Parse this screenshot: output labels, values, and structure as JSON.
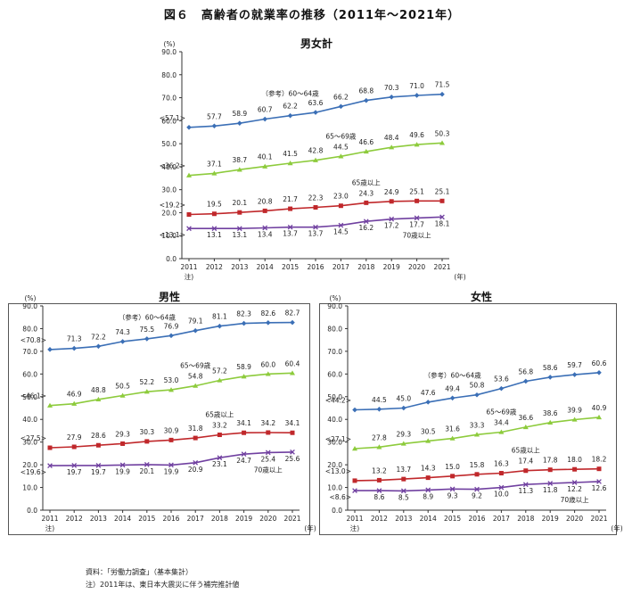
{
  "figure_title": "図６　高齢者の就業率の推移（2011年～2021年）",
  "footer": {
    "source": "資料：「労働力調査」（基本集計）",
    "note": "注）2011年は、東日本大震災に伴う補完推計値"
  },
  "chart_data": [
    {
      "type": "line",
      "title": "男女計",
      "ylabel": "(%)",
      "xunit": "(年)",
      "x_note": "注)",
      "ylim": [
        0,
        90
      ],
      "grid": false,
      "categories": [
        "2011",
        "2012",
        "2013",
        "2014",
        "2015",
        "2016",
        "2017",
        "2018",
        "2019",
        "2020",
        "2021"
      ],
      "y_ticks": [
        "0.0",
        "10.0",
        "20.0",
        "30.0",
        "40.0",
        "50.0",
        "60.0",
        "70.0",
        "80.0",
        "90.0"
      ],
      "y_tick_values": [
        0,
        10,
        20,
        30,
        40,
        50,
        60,
        70,
        80,
        90
      ],
      "series": [
        {
          "name": "（参考）60～64歳",
          "color": "#3b6fb6",
          "marker": "diamond",
          "values": [
            57.1,
            57.7,
            58.9,
            60.7,
            62.2,
            63.6,
            66.2,
            68.8,
            70.3,
            71.0,
            71.5
          ],
          "labels": [
            "<57.1>",
            "57.7",
            "58.9",
            "60.7",
            "62.2",
            "63.6",
            "66.2",
            "68.8",
            "70.3",
            "71.0",
            "71.5"
          ]
        },
        {
          "name": "65～69歳",
          "color": "#8dcb3c",
          "marker": "triangle",
          "values": [
            36.2,
            37.1,
            38.7,
            40.1,
            41.5,
            42.8,
            44.5,
            46.6,
            48.4,
            49.6,
            50.3
          ],
          "labels": [
            "<36.2>",
            "37.1",
            "38.7",
            "40.1",
            "41.5",
            "42.8",
            "44.5",
            "46.6",
            "48.4",
            "49.6",
            "50.3"
          ]
        },
        {
          "name": "65歳以上",
          "color": "#c0282b",
          "marker": "square",
          "values": [
            19.2,
            19.5,
            20.1,
            20.8,
            21.7,
            22.3,
            23.0,
            24.3,
            24.9,
            25.1,
            25.1
          ],
          "labels": [
            "<19.2>",
            "19.5",
            "20.1",
            "20.8",
            "21.7",
            "22.3",
            "23.0",
            "24.3",
            "24.9",
            "25.1",
            "25.1"
          ]
        },
        {
          "name": "70歳以上",
          "color": "#7040a0",
          "marker": "x",
          "values": [
            13.1,
            13.1,
            13.1,
            13.4,
            13.7,
            13.7,
            14.5,
            16.2,
            17.2,
            17.7,
            18.1
          ],
          "labels": [
            "<13.1>",
            "13.1",
            "13.1",
            "13.4",
            "13.7",
            "13.7",
            "14.5",
            "16.2",
            "17.2",
            "17.7",
            "18.1"
          ]
        }
      ]
    },
    {
      "type": "line",
      "title": "男性",
      "ylabel": "(%)",
      "xunit": "(年)",
      "x_note": "注)",
      "ylim": [
        0,
        90
      ],
      "grid": false,
      "categories": [
        "2011",
        "2012",
        "2013",
        "2014",
        "2015",
        "2016",
        "2017",
        "2018",
        "2019",
        "2020",
        "2021"
      ],
      "y_ticks": [
        "0.0",
        "10.0",
        "20.0",
        "30.0",
        "40.0",
        "50.0",
        "60.0",
        "70.0",
        "80.0",
        "90.0"
      ],
      "y_tick_values": [
        0,
        10,
        20,
        30,
        40,
        50,
        60,
        70,
        80,
        90
      ],
      "series": [
        {
          "name": "（参考）60～64歳",
          "color": "#3b6fb6",
          "marker": "diamond",
          "values": [
            70.8,
            71.3,
            72.2,
            74.3,
            75.5,
            76.9,
            79.1,
            81.1,
            82.3,
            82.6,
            82.7
          ],
          "labels": [
            "<70.8>",
            "71.3",
            "72.2",
            "74.3",
            "75.5",
            "76.9",
            "79.1",
            "81.1",
            "82.3",
            "82.6",
            "82.7"
          ]
        },
        {
          "name": "65～69歳",
          "color": "#8dcb3c",
          "marker": "triangle",
          "values": [
            46.1,
            46.9,
            48.8,
            50.5,
            52.2,
            53.0,
            54.8,
            57.2,
            58.9,
            60.0,
            60.4
          ],
          "labels": [
            "<46.1>",
            "46.9",
            "48.8",
            "50.5",
            "52.2",
            "53.0",
            "54.8",
            "57.2",
            "58.9",
            "60.0",
            "60.4"
          ]
        },
        {
          "name": "65歳以上",
          "color": "#c0282b",
          "marker": "square",
          "values": [
            27.5,
            27.9,
            28.6,
            29.3,
            30.3,
            30.9,
            31.8,
            33.2,
            34.1,
            34.2,
            34.1
          ],
          "labels": [
            "<27.5>",
            "27.9",
            "28.6",
            "29.3",
            "30.3",
            "30.9",
            "31.8",
            "33.2",
            "34.1",
            "34.2",
            "34.1"
          ]
        },
        {
          "name": "70歳以上",
          "color": "#7040a0",
          "marker": "x",
          "values": [
            19.6,
            19.7,
            19.7,
            19.9,
            20.1,
            19.9,
            20.9,
            23.1,
            24.7,
            25.4,
            25.6
          ],
          "labels": [
            "<19.6>",
            "19.7",
            "19.7",
            "19.9",
            "20.1",
            "19.9",
            "20.9",
            "23.1",
            "24.7",
            "25.4",
            "25.6"
          ]
        }
      ]
    },
    {
      "type": "line",
      "title": "女性",
      "ylabel": "(%)",
      "xunit": "(年)",
      "x_note": "注)",
      "ylim": [
        0,
        90
      ],
      "grid": false,
      "categories": [
        "2011",
        "2012",
        "2013",
        "2014",
        "2015",
        "2016",
        "2017",
        "2018",
        "2019",
        "2020",
        "2021"
      ],
      "y_ticks": [
        "0.0",
        "10.0",
        "20.0",
        "30.0",
        "40.0",
        "50.0",
        "60.0",
        "70.0",
        "80.0",
        "90.0"
      ],
      "y_tick_values": [
        0,
        10,
        20,
        30,
        40,
        50,
        60,
        70,
        80,
        90
      ],
      "series": [
        {
          "name": "（参考）60～64歳",
          "color": "#3b6fb6",
          "marker": "diamond",
          "values": [
            44.2,
            44.5,
            45.0,
            47.6,
            49.4,
            50.8,
            53.6,
            56.8,
            58.6,
            59.7,
            60.6
          ],
          "labels": [
            "<44.2>",
            "44.5",
            "45.0",
            "47.6",
            "49.4",
            "50.8",
            "53.6",
            "56.8",
            "58.6",
            "59.7",
            "60.6"
          ]
        },
        {
          "name": "65～69歳",
          "color": "#8dcb3c",
          "marker": "triangle",
          "values": [
            27.1,
            27.8,
            29.3,
            30.5,
            31.6,
            33.3,
            34.4,
            36.6,
            38.6,
            39.9,
            40.9
          ],
          "labels": [
            "<27.1>",
            "27.8",
            "29.3",
            "30.5",
            "31.6",
            "33.3",
            "34.4",
            "36.6",
            "38.6",
            "39.9",
            "40.9"
          ]
        },
        {
          "name": "65歳以上",
          "color": "#c0282b",
          "marker": "square",
          "values": [
            13.0,
            13.2,
            13.7,
            14.3,
            15.0,
            15.8,
            16.3,
            17.4,
            17.8,
            18.0,
            18.2
          ],
          "labels": [
            "<13.0>",
            "13.2",
            "13.7",
            "14.3",
            "15.0",
            "15.8",
            "16.3",
            "17.4",
            "17.8",
            "18.0",
            "18.2"
          ]
        },
        {
          "name": "70歳以上",
          "color": "#7040a0",
          "marker": "x",
          "values": [
            8.6,
            8.6,
            8.5,
            8.9,
            9.3,
            9.2,
            10.0,
            11.3,
            11.8,
            12.2,
            12.6
          ],
          "labels": [
            "<8.6>",
            "8.6",
            "8.5",
            "8.9",
            "9.3",
            "9.2",
            "10.0",
            "11.3",
            "11.8",
            "12.2",
            "12.6"
          ]
        }
      ]
    }
  ]
}
